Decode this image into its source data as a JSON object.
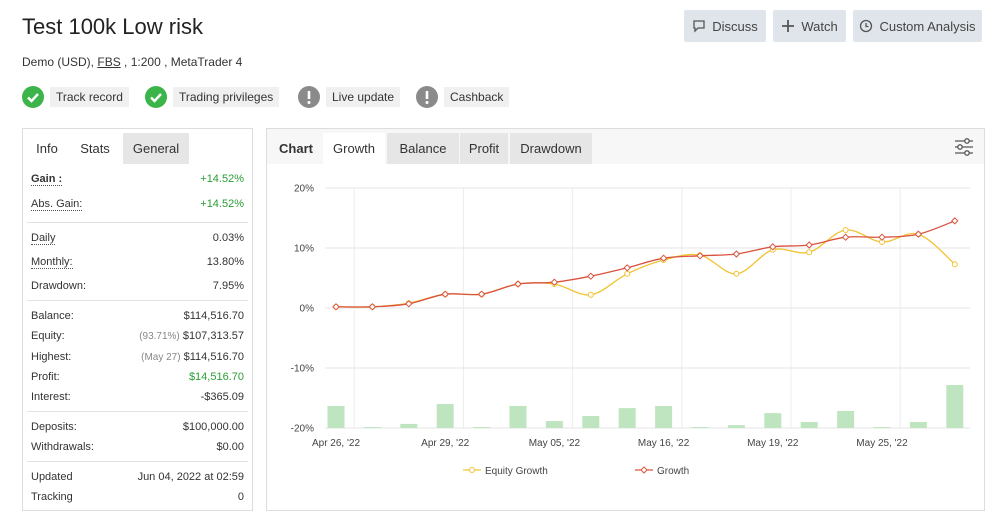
{
  "header": {
    "title": "Test 100k Low risk",
    "subtitle": {
      "prefix": "Demo (USD),",
      "broker": "FBS",
      "suffix": ", 1:200 , MetaTrader 4"
    }
  },
  "buttons": [
    "Discuss",
    "Watch",
    "Custom Analysis"
  ],
  "badges": [
    {
      "label": "Track record",
      "status": "ok"
    },
    {
      "label": "Trading privileges",
      "status": "ok"
    },
    {
      "label": "Live update",
      "status": "warn"
    },
    {
      "label": "Cashback",
      "status": "warn"
    }
  ],
  "stats": {
    "tabs": [
      "Info",
      "Stats",
      "General"
    ],
    "active_tab": 1,
    "groups": [
      [
        {
          "label": "Gain :",
          "value": "+14.52%",
          "color": "green"
        },
        {
          "label": "Abs. Gain:",
          "value": "+14.52%",
          "color": "green"
        }
      ],
      [
        {
          "label": "Daily",
          "value": "0.03%"
        },
        {
          "label": "Monthly:",
          "value": "13.80%"
        },
        {
          "label": "Drawdown:",
          "value": "7.95%"
        }
      ],
      [
        {
          "label": "Balance:",
          "value": "$114,516.70"
        },
        {
          "label": "Equity:",
          "note": "(93.71%)",
          "value": "$107,313.57"
        },
        {
          "label": "Highest:",
          "note": "(May 27)",
          "value": "$114,516.70"
        },
        {
          "label": "Profit:",
          "value": "$14,516.70",
          "color": "green"
        },
        {
          "label": "Interest:",
          "value": "-$365.09"
        }
      ],
      [
        {
          "label": "Deposits:",
          "value": "$100,000.00"
        },
        {
          "label": "Withdrawals:",
          "value": "$0.00"
        }
      ],
      [
        {
          "label": "Updated",
          "value": "Jun 04, 2022 at 02:59"
        },
        {
          "label": "Tracking",
          "value": "0"
        }
      ]
    ]
  },
  "chart_panel": {
    "tabs": [
      "Chart",
      "Growth",
      "Balance",
      "Profit",
      "Drawdown"
    ],
    "active_tab": 1
  },
  "chart_data": {
    "type": "line",
    "categories": [
      "Apr 26, '22",
      null,
      null,
      "Apr 29, '22",
      null,
      null,
      "May 05, '22",
      null,
      null,
      "May 16, '22",
      null,
      null,
      "May 19, '22",
      null,
      null,
      "May 25, '22",
      null,
      null
    ],
    "series": [
      {
        "name": "Equity Growth",
        "color": "#f2c230",
        "marker": "circle",
        "values": [
          0.2,
          0.2,
          0.8,
          2.3,
          2.3,
          4.0,
          4.0,
          2.2,
          5.7,
          8.0,
          8.8,
          5.7,
          9.7,
          9.3,
          13.0,
          11.0,
          12.3,
          7.3
        ]
      },
      {
        "name": "Growth",
        "color": "#d9533f",
        "marker": "diamond",
        "values": [
          0.2,
          0.2,
          0.7,
          2.3,
          2.3,
          4.0,
          4.3,
          5.3,
          6.7,
          8.3,
          8.7,
          9.0,
          10.2,
          10.5,
          11.8,
          11.8,
          12.3,
          14.52
        ]
      }
    ],
    "bars": {
      "color": "#bfe5c0",
      "axis": "y2",
      "values": [
        9.2,
        0.4,
        1.7,
        10,
        0.4,
        9.2,
        2.9,
        5,
        8.3,
        9.2,
        0.4,
        1.2,
        6.2,
        2.5,
        7.1,
        0.4,
        2.5,
        17.9
      ]
    },
    "ylim": [
      -20,
      20
    ],
    "yticks": [
      {
        "value": -20,
        "label": "-20%"
      },
      {
        "value": -10,
        "label": "-10%"
      },
      {
        "value": 0,
        "label": "0%"
      },
      {
        "value": 10,
        "label": "10%"
      },
      {
        "value": 20,
        "label": "20%"
      }
    ],
    "y2lim": [
      0,
      100
    ],
    "grid": true,
    "legend": "bottom"
  }
}
